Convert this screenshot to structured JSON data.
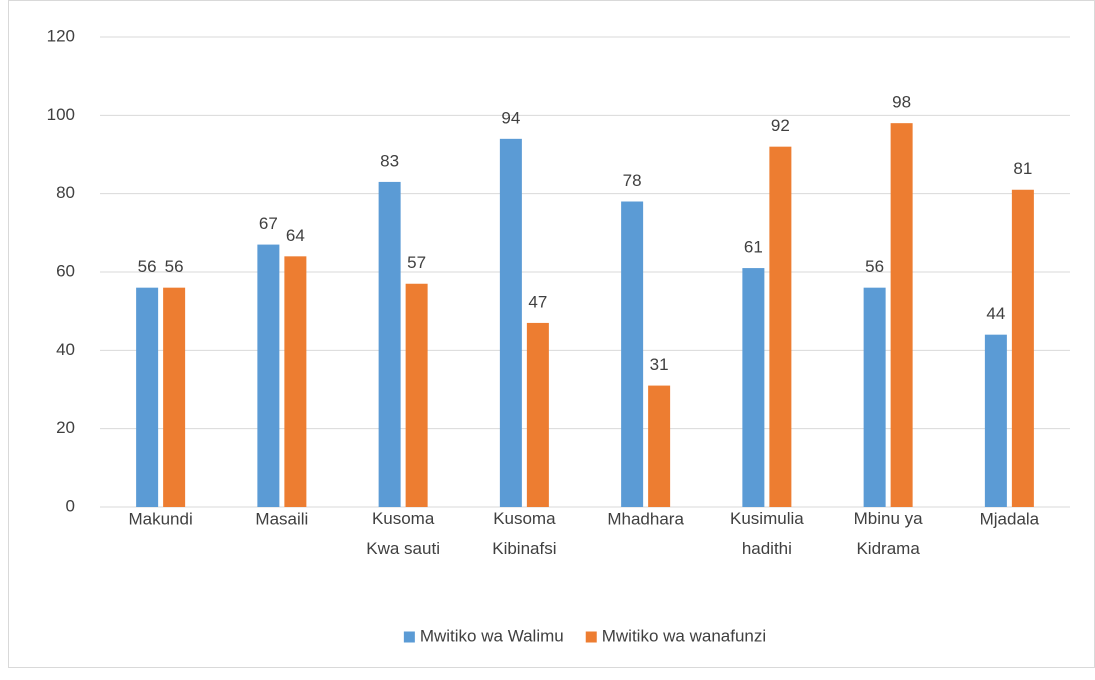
{
  "chart_data": {
    "type": "bar",
    "categories": [
      "Makundi",
      "Masaili",
      "Kusoma\nKwa sauti",
      "Kusoma\nKibinafsi",
      "Mhadhara",
      "Kusimulia\nhadithi",
      "Mbinu ya\nKidrama",
      "Mjadala"
    ],
    "series": [
      {
        "name": "Mwitiko wa Walimu",
        "color": "#5b9bd5",
        "values": [
          56,
          67,
          83,
          94,
          78,
          61,
          56,
          44
        ]
      },
      {
        "name": "Mwitiko wa wanafunzi",
        "color": "#ed7d31",
        "values": [
          56,
          64,
          57,
          47,
          31,
          92,
          98,
          81
        ]
      }
    ],
    "ylim": [
      0,
      120
    ],
    "yticks": [
      0,
      20,
      40,
      60,
      80,
      100,
      120
    ],
    "grid": true,
    "legend": "bottom"
  }
}
